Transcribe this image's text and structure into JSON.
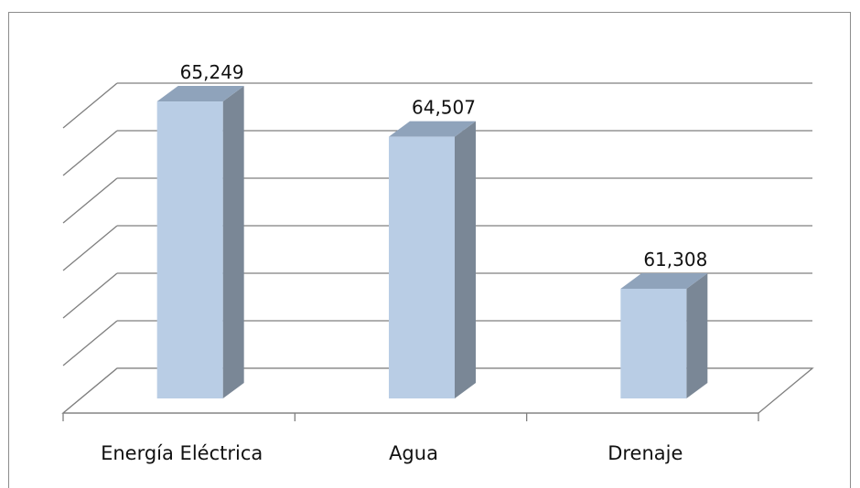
{
  "chart_data": {
    "type": "bar",
    "style": "3d-column",
    "categories": [
      "Energía Eléctrica",
      "Agua",
      "Drenaje"
    ],
    "values": [
      65.249,
      64.507,
      61.308
    ],
    "data_labels": [
      "65,249",
      "64,507",
      "61,308"
    ],
    "title": "",
    "xlabel": "",
    "ylabel": "",
    "y_axis_labels_visible": false,
    "ylim": [
      59,
      66.5
    ],
    "grid": true,
    "legend": "none"
  },
  "colors": {
    "bar_front": "#b9cde5",
    "bar_side": "#7a8796",
    "bar_top": "#8fa3bb",
    "gridline": "#7f7f7f",
    "frame": "#8c8c8c"
  }
}
